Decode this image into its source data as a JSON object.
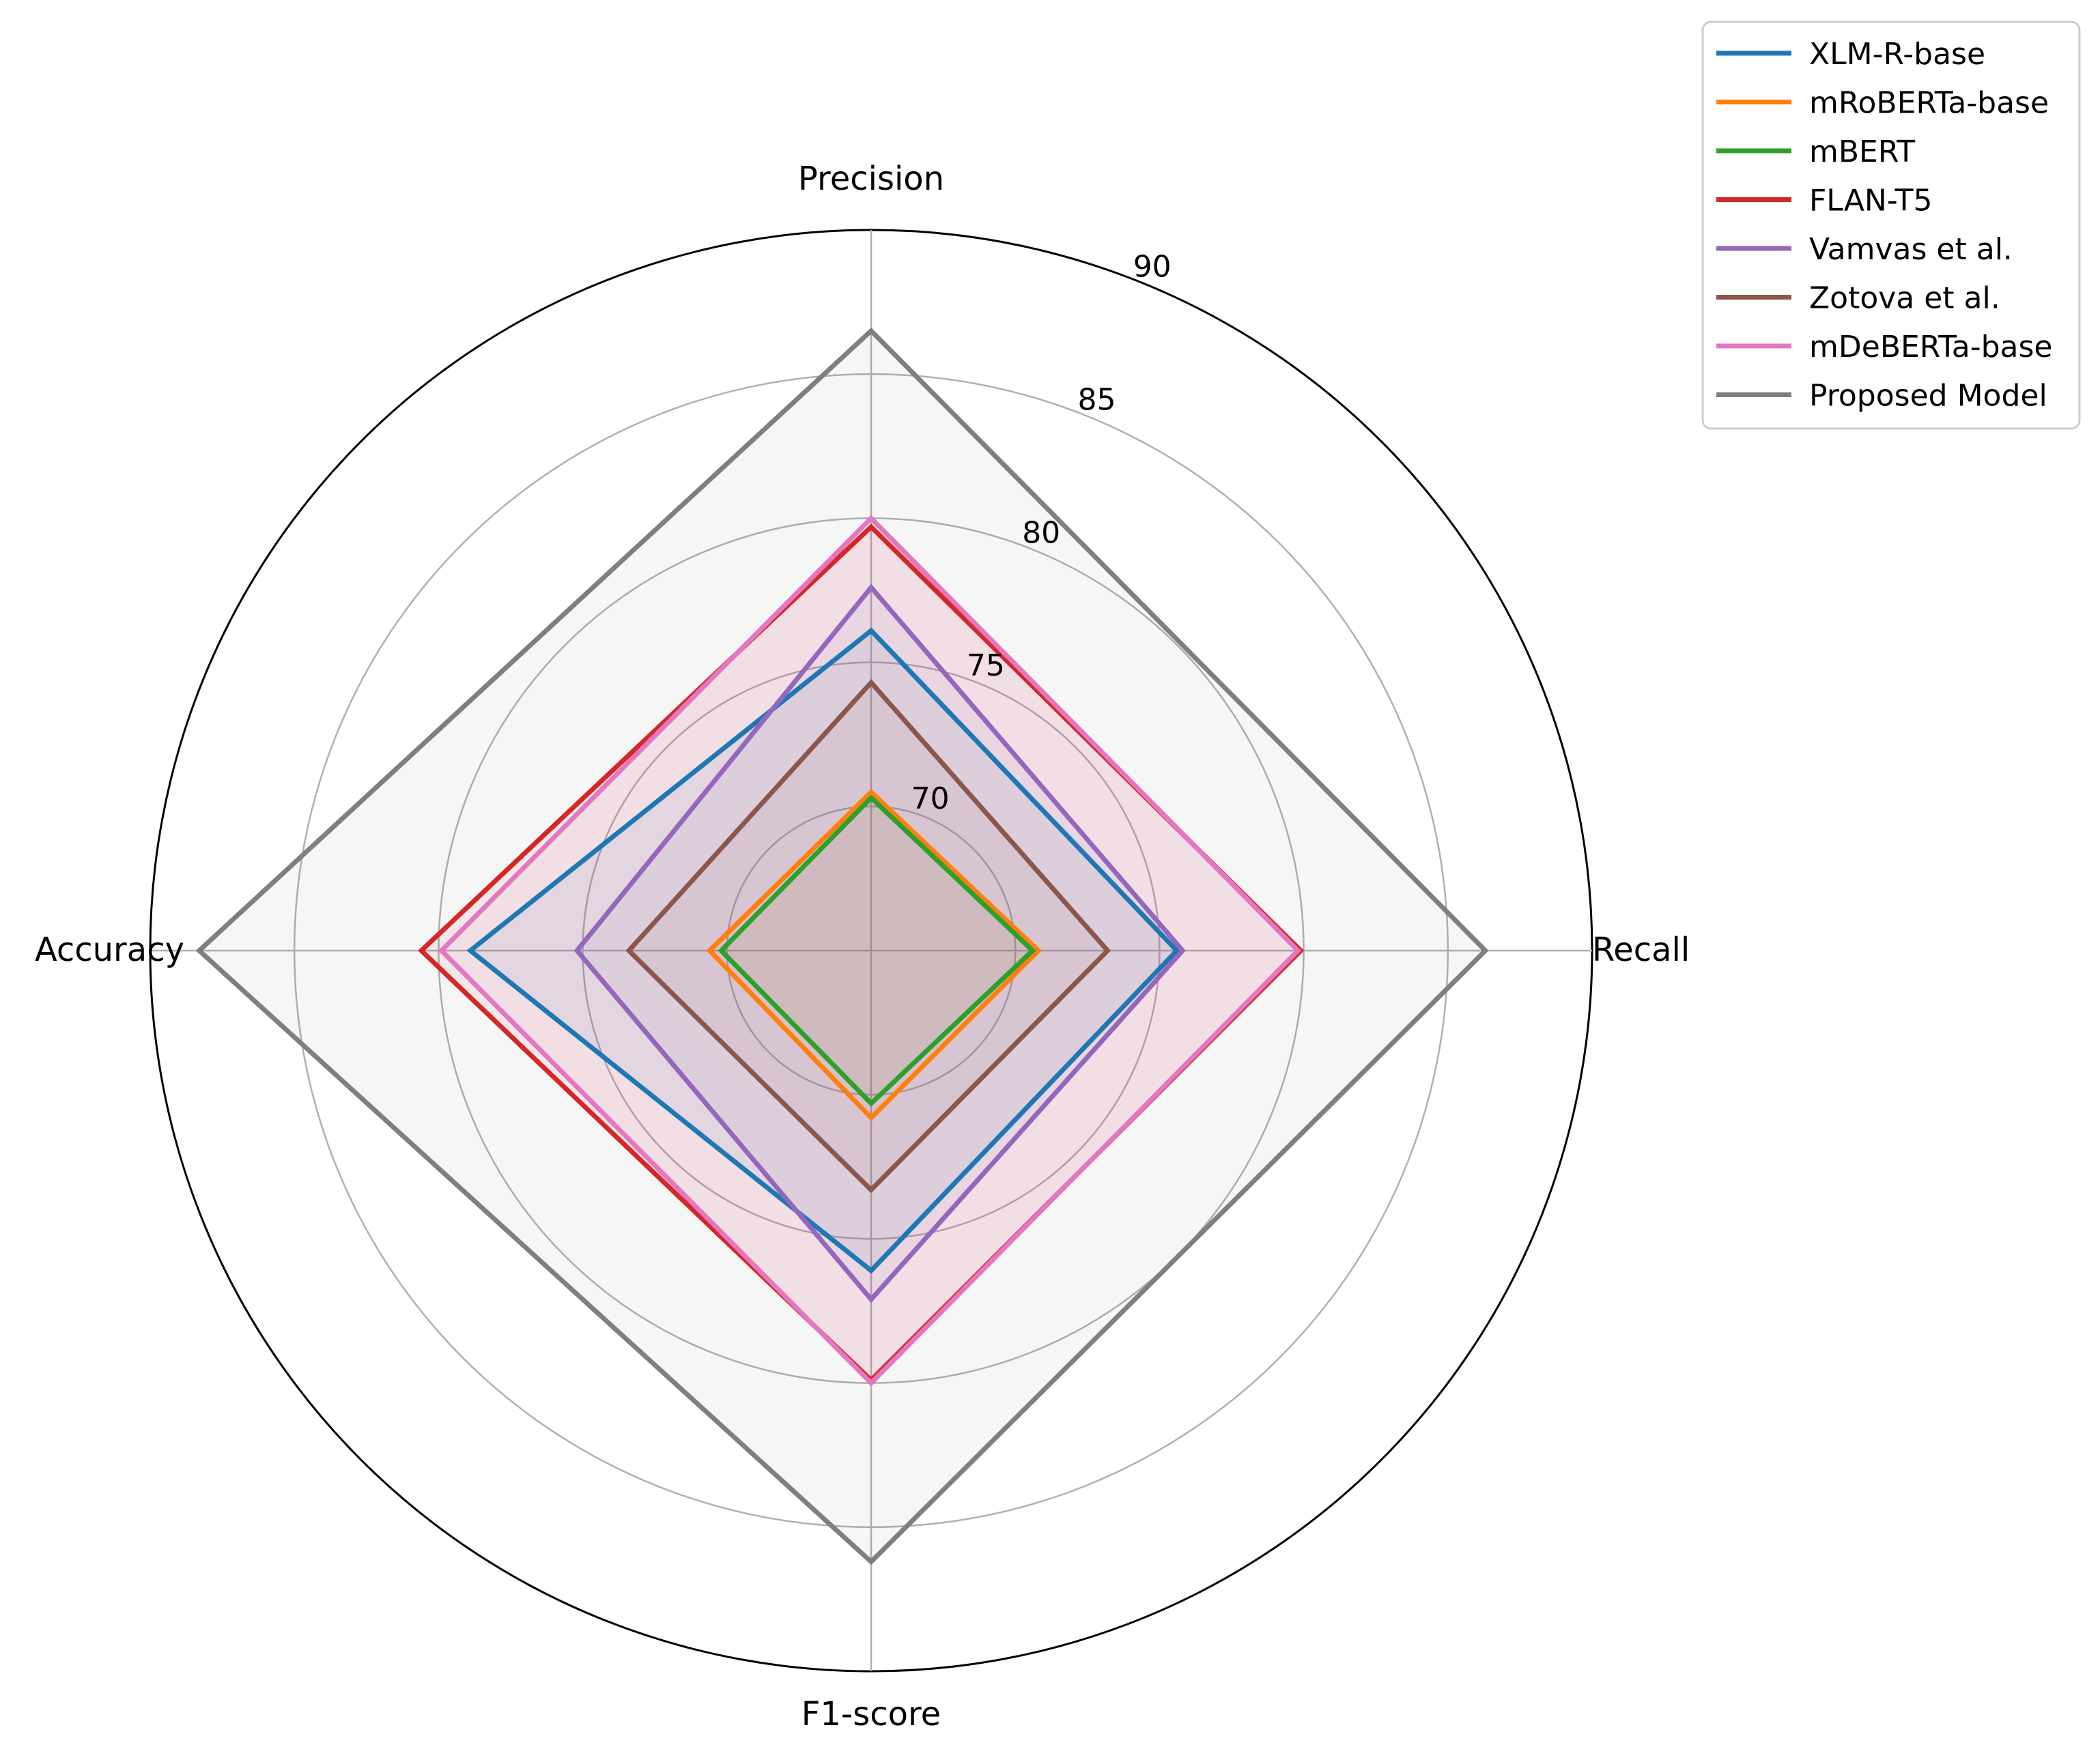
{
  "chart_data": {
    "type": "radar",
    "title": "",
    "axes": [
      "Precision",
      "Recall",
      "F1-score",
      "Accuracy"
    ],
    "rlim": [
      65,
      90
    ],
    "ticks": [
      70,
      75,
      80,
      85,
      90
    ],
    "grid": true,
    "legend": "top-right",
    "series": [
      {
        "name": "XLM-R-base",
        "color": "#1f77b4",
        "values": [
          76.1,
          75.6,
          76.1,
          78.9
        ]
      },
      {
        "name": "mRoBERTa-base",
        "color": "#ff7f0e",
        "values": [
          70.5,
          70.8,
          70.8,
          70.6
        ]
      },
      {
        "name": "mBERT",
        "color": "#2ca02c",
        "values": [
          70.3,
          70.6,
          70.3,
          70.2
        ]
      },
      {
        "name": "FLAN-T5",
        "color": "#d62728",
        "values": [
          79.7,
          79.9,
          79.9,
          80.6
        ]
      },
      {
        "name": "Vamvas et al.",
        "color": "#9467bd",
        "values": [
          77.6,
          75.8,
          77.1,
          75.2
        ]
      },
      {
        "name": "Zotova et al.",
        "color": "#8c564b",
        "values": [
          74.3,
          73.2,
          73.3,
          73.4
        ]
      },
      {
        "name": "mDeBERTa-base",
        "color": "#e377c2",
        "values": [
          80.0,
          79.8,
          80.0,
          79.9
        ]
      },
      {
        "name": "Proposed Model",
        "color": "#7f7f7f",
        "values": [
          86.5,
          86.3,
          86.2,
          88.3
        ]
      }
    ]
  }
}
